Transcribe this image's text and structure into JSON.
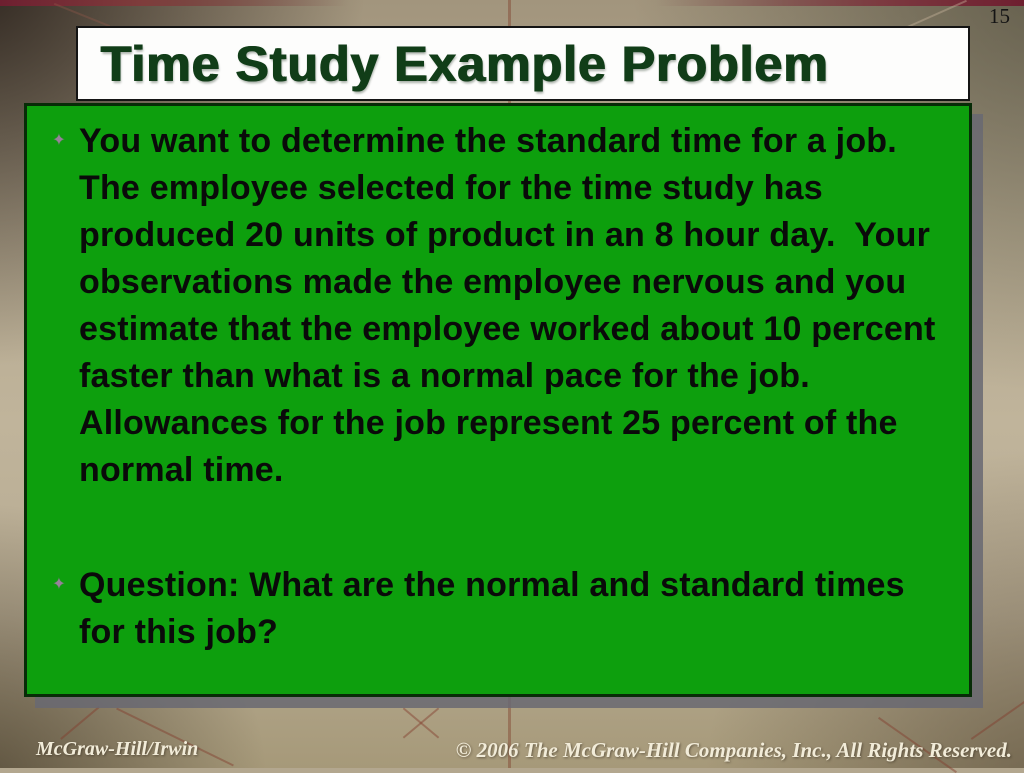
{
  "slide": {
    "page_number": "15",
    "title": "Time Study Example Problem",
    "bullet_glyph": "✦",
    "bullets": [
      "You want to determine the standard time for a job.  The employee selected for the time study has produced 20 units of product in an 8 hour day.  Your observations made the employee nervous and you estimate that the employee worked about 10 percent faster than what is a normal pace for the job.  Allowances for the job represent 25 percent of the normal time.",
      "Question: What are the normal and standard times for this job?"
    ],
    "footer": {
      "left": "McGraw-Hill/Irwin",
      "right": "© 2006 The McGraw-Hill Companies, Inc., All Rights Reserved."
    },
    "colors": {
      "content_box_green": "#0d9f0d",
      "title_text_green": "#113d18",
      "background_tan": "#b3a78f",
      "shadow_gray": "#686872",
      "bullet_gray": "#97839a",
      "top_strip_maroon": "#6e1f30"
    }
  }
}
